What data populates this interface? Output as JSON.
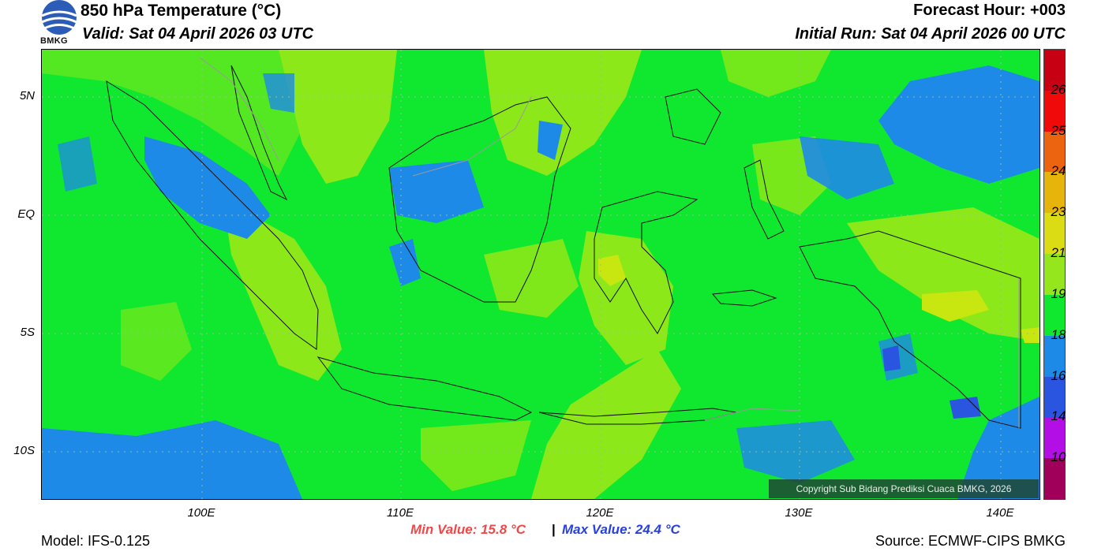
{
  "header": {
    "title": "850 hPa Temperature (°C)",
    "valid": "Valid: Sat 04 April 2026 03 UTC",
    "forecast_hour": "Forecast Hour: +003",
    "initial_run": "Initial Run: Sat 04 April 2026 00 UTC",
    "logo_text": "BMKG"
  },
  "map": {
    "lat_labels": [
      "5N",
      "EQ",
      "5S",
      "10S"
    ],
    "lon_labels": [
      "100E",
      "110E",
      "120E",
      "130E",
      "140E"
    ],
    "colors": {
      "bg": "#10e830",
      "cool": "#1e8ae8",
      "coolest": "#2a55e0",
      "warm": "#8ce818",
      "warmer": "#c8e610",
      "coast": "#111111",
      "grid": "#9bbb9b"
    }
  },
  "colorbar": {
    "labels": [
      "26",
      "25",
      "24",
      "23",
      "21",
      "19",
      "18",
      "16",
      "14",
      "10"
    ],
    "colors": [
      "#c80014",
      "#f00a0a",
      "#ec6410",
      "#e6b40a",
      "#dcdc14",
      "#96e61e",
      "#10e830",
      "#1e8ae8",
      "#2a55e0",
      "#b40ee6",
      "#a0005a"
    ]
  },
  "footer": {
    "min_value": "Min Value: 15.8 °C",
    "separator": "|",
    "max_value": "Max Value: 24.4 °C",
    "model": "Model: IFS-0.125",
    "source": "Source: ECMWF-CIPS BMKG",
    "copyright": "Copyright Sub Bidang Prediksi Cuaca BMKG, 2026"
  }
}
